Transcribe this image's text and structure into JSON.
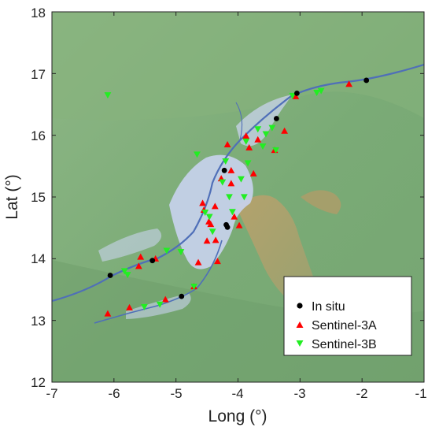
{
  "chart_data": {
    "type": "scatter",
    "title": "",
    "xlabel": "Long (°)",
    "ylabel": "Lat (°)",
    "xlim": [
      -7,
      -1
    ],
    "ylim": [
      12,
      18
    ],
    "xticks": [
      "-7",
      "-6",
      "-5",
      "-4",
      "-3",
      "-2",
      "-1"
    ],
    "yticks": [
      "12",
      "13",
      "14",
      "15",
      "16",
      "17",
      "18"
    ],
    "legend_position": "bottom-right",
    "grid": false,
    "colors": {
      "in_situ": "#000000",
      "sentinel_3a": "#ff0000",
      "sentinel_3b": "#22ee22",
      "terrain": "#7daf78",
      "flood": "#c9d3ee",
      "river": "#4f6fb8"
    },
    "series": [
      {
        "name": "In situ",
        "marker": "circle",
        "points": [
          [
            -6.06,
            13.73
          ],
          [
            -5.38,
            13.97
          ],
          [
            -4.91,
            13.39
          ],
          [
            -4.22,
            15.43
          ],
          [
            -4.19,
            14.55
          ],
          [
            -4.17,
            14.51
          ],
          [
            -3.38,
            16.27
          ],
          [
            -3.05,
            16.68
          ],
          [
            -1.93,
            16.89
          ]
        ]
      },
      {
        "name": "Sentinel-3A",
        "marker": "triangle-up",
        "points": [
          [
            -6.1,
            13.11
          ],
          [
            -5.75,
            13.21
          ],
          [
            -5.6,
            13.88
          ],
          [
            -5.57,
            14.03
          ],
          [
            -5.33,
            14.0
          ],
          [
            -5.17,
            13.34
          ],
          [
            -4.71,
            13.55
          ],
          [
            -4.64,
            13.94
          ],
          [
            -4.57,
            14.9
          ],
          [
            -4.55,
            14.79
          ],
          [
            -4.5,
            14.29
          ],
          [
            -4.47,
            14.6
          ],
          [
            -4.44,
            14.56
          ],
          [
            -4.37,
            14.85
          ],
          [
            -4.36,
            14.3
          ],
          [
            -4.33,
            13.96
          ],
          [
            -4.27,
            15.3
          ],
          [
            -4.17,
            15.85
          ],
          [
            -4.11,
            15.43
          ],
          [
            -4.11,
            15.22
          ],
          [
            -4.06,
            14.68
          ],
          [
            -3.98,
            14.54
          ],
          [
            -3.87,
            15.99
          ],
          [
            -3.82,
            15.8
          ],
          [
            -3.75,
            15.38
          ],
          [
            -3.68,
            15.93
          ],
          [
            -3.41,
            15.76
          ],
          [
            -3.25,
            16.07
          ],
          [
            -3.07,
            16.63
          ],
          [
            -2.21,
            16.83
          ]
        ]
      },
      {
        "name": "Sentinel-3B",
        "marker": "triangle-down",
        "points": [
          [
            -6.1,
            16.65
          ],
          [
            -5.83,
            13.8
          ],
          [
            -5.78,
            13.74
          ],
          [
            -5.51,
            13.22
          ],
          [
            -5.26,
            13.26
          ],
          [
            -5.15,
            14.13
          ],
          [
            -4.92,
            14.11
          ],
          [
            -4.71,
            13.55
          ],
          [
            -4.66,
            15.69
          ],
          [
            -4.53,
            14.75
          ],
          [
            -4.46,
            14.68
          ],
          [
            -4.41,
            14.44
          ],
          [
            -4.25,
            15.24
          ],
          [
            -4.2,
            15.58
          ],
          [
            -4.14,
            15.0
          ],
          [
            -4.09,
            14.76
          ],
          [
            -3.95,
            15.29
          ],
          [
            -3.9,
            15.0
          ],
          [
            -3.87,
            15.9
          ],
          [
            -3.84,
            15.55
          ],
          [
            -3.68,
            16.1
          ],
          [
            -3.6,
            15.82
          ],
          [
            -3.55,
            16.02
          ],
          [
            -3.45,
            16.12
          ],
          [
            -3.39,
            15.76
          ],
          [
            -3.12,
            16.64
          ],
          [
            -2.73,
            16.69
          ],
          [
            -2.66,
            16.72
          ]
        ]
      }
    ]
  }
}
